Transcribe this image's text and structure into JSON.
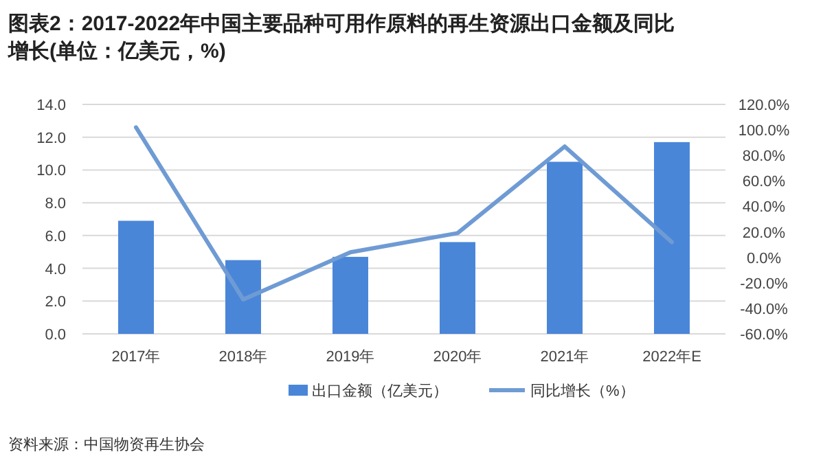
{
  "chart_data": {
    "type": "bar",
    "title": "图表2：2017-2022年中国主要品种可用作原料的再生资源出口金额及同比增长(单位：亿美元，%)",
    "categories": [
      "2017年",
      "2018年",
      "2019年",
      "2020年",
      "2021年",
      "2022年E"
    ],
    "series": [
      {
        "name": "出口金额（亿美元）",
        "color": "#4a86d8",
        "values": [
          6.9,
          4.5,
          4.7,
          5.6,
          10.5,
          11.7
        ]
      },
      {
        "name": "同比增长（%）",
        "type": "line",
        "axis": "y2",
        "color": "#6f9bd4",
        "values": [
          102,
          -33,
          4,
          19,
          87,
          12
        ]
      }
    ],
    "ylim": [
      0,
      14
    ],
    "yticks": [
      {
        "value": 0,
        "label": "0.0"
      },
      {
        "value": 2,
        "label": "2.0"
      },
      {
        "value": 4,
        "label": "4.0"
      },
      {
        "value": 6,
        "label": "6.0"
      },
      {
        "value": 8,
        "label": "8.0"
      },
      {
        "value": 10,
        "label": "10.0"
      },
      {
        "value": 12,
        "label": "12.0"
      },
      {
        "value": 14,
        "label": "14.0"
      }
    ],
    "y2lim": [
      -60,
      120
    ],
    "y2ticks": [
      {
        "value": -60,
        "label": "-60.0%"
      },
      {
        "value": -40,
        "label": "-40.0%"
      },
      {
        "value": -20,
        "label": "-20.0%"
      },
      {
        "value": 0,
        "label": "0.0%"
      },
      {
        "value": 20,
        "label": "20.0%"
      },
      {
        "value": 40,
        "label": "40.0%"
      },
      {
        "value": 60,
        "label": "60.0%"
      },
      {
        "value": 80,
        "label": "80.0%"
      },
      {
        "value": 100,
        "label": "100.0%"
      },
      {
        "value": 120,
        "label": "120.0%"
      }
    ],
    "grid": "y",
    "legend": "bottom",
    "marker": "none",
    "annotations": [
      "资料来源：中国物资再生协会"
    ]
  }
}
